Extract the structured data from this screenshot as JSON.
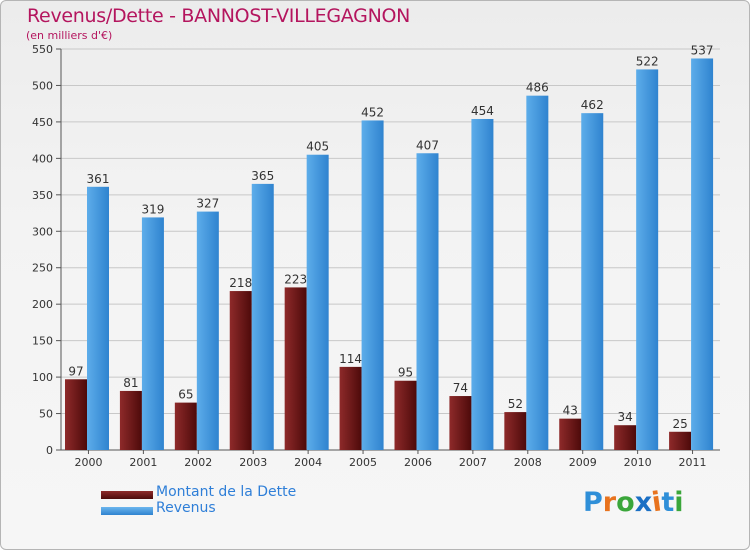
{
  "chart_data": {
    "type": "bar",
    "title": "Revenus/Dette - BANNOST-VILLEGAGNON",
    "subtitle": "(en milliers d'€)",
    "categories": [
      "2000",
      "2001",
      "2002",
      "2003",
      "2004",
      "2005",
      "2006",
      "2007",
      "2008",
      "2009",
      "2010",
      "2011"
    ],
    "series": [
      {
        "name": "Montant de la Dette",
        "color": "#7a1f1f",
        "values": [
          97,
          81,
          65,
          218,
          223,
          114,
          95,
          74,
          52,
          43,
          34,
          25
        ]
      },
      {
        "name": "Revenus",
        "color": "#3d95de",
        "values": [
          361,
          319,
          327,
          365,
          405,
          452,
          407,
          454,
          486,
          462,
          522,
          537
        ]
      }
    ],
    "ylim": [
      0,
      550
    ],
    "yticks": [
      0,
      50,
      100,
      150,
      200,
      250,
      300,
      350,
      400,
      450,
      500,
      550
    ],
    "grid": true,
    "legend_position": "bottom-left"
  },
  "logo": {
    "text": "Proxiti",
    "letter_colors": [
      "#2f8fd8",
      "#e8731e",
      "#3aa63a",
      "#1a6fc4",
      "#e8731e",
      "#2f8fd8",
      "#3aa63a"
    ]
  }
}
